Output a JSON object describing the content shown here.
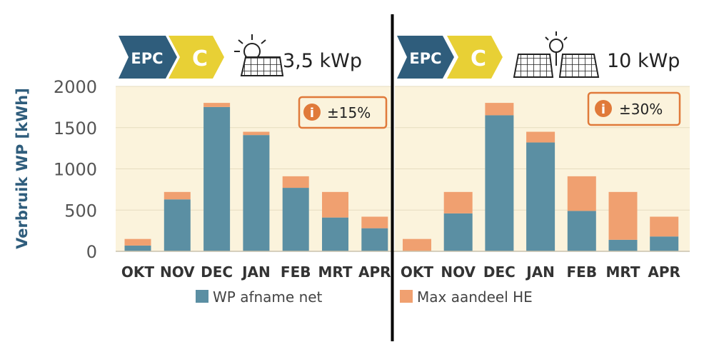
{
  "y_axis_label": "Verbruik WP [kWh]",
  "colors": {
    "bar_base": "#5b8fa3",
    "bar_stack": "#f0a070",
    "plot_bg": "#fbf3dc",
    "badge_dark": "#2f5d7c",
    "badge_yellow": "#e8d035",
    "axis_text": "#555555",
    "label_text": "#333333",
    "info_orange": "#e07a3a",
    "divider": "#000000"
  },
  "legend": {
    "base_label": "WP afname net",
    "stack_label": "Max aandeel HE"
  },
  "panels": [
    {
      "epc_label": "EPC",
      "epc_grade": "C",
      "capacity": "3,5 kWp",
      "info_text": "±15%",
      "info_icon": "i"
    },
    {
      "epc_label": "EPC",
      "epc_grade": "C",
      "capacity": "10 kWp",
      "info_text": "±30%",
      "info_icon": "i"
    }
  ],
  "chart_data": [
    {
      "type": "bar",
      "stacked": true,
      "title": "EPC C – 3,5 kWp",
      "ylabel": "Verbruik WP [kWh]",
      "ylim": [
        0,
        2000
      ],
      "yticks": [
        0,
        500,
        1000,
        1500,
        2000
      ],
      "grid": true,
      "categories": [
        "OKT",
        "NOV",
        "DEC",
        "JAN",
        "FEB",
        "MRT",
        "APR"
      ],
      "series": [
        {
          "name": "WP afname net",
          "values": [
            70,
            630,
            1750,
            1410,
            770,
            410,
            280
          ]
        },
        {
          "name": "Max aandeel HE",
          "values": [
            80,
            90,
            50,
            40,
            140,
            310,
            140
          ]
        }
      ]
    },
    {
      "type": "bar",
      "stacked": true,
      "title": "EPC C – 10 kWp",
      "ylabel": "Verbruik WP [kWh]",
      "ylim": [
        0,
        2000
      ],
      "yticks": [
        0,
        500,
        1000,
        1500,
        2000
      ],
      "grid": true,
      "categories": [
        "OKT",
        "NOV",
        "DEC",
        "JAN",
        "FEB",
        "MRT",
        "APR"
      ],
      "series": [
        {
          "name": "WP afname net",
          "values": [
            0,
            460,
            1650,
            1320,
            490,
            140,
            180
          ]
        },
        {
          "name": "Max aandeel HE",
          "values": [
            150,
            260,
            150,
            130,
            420,
            580,
            240
          ]
        }
      ]
    }
  ]
}
